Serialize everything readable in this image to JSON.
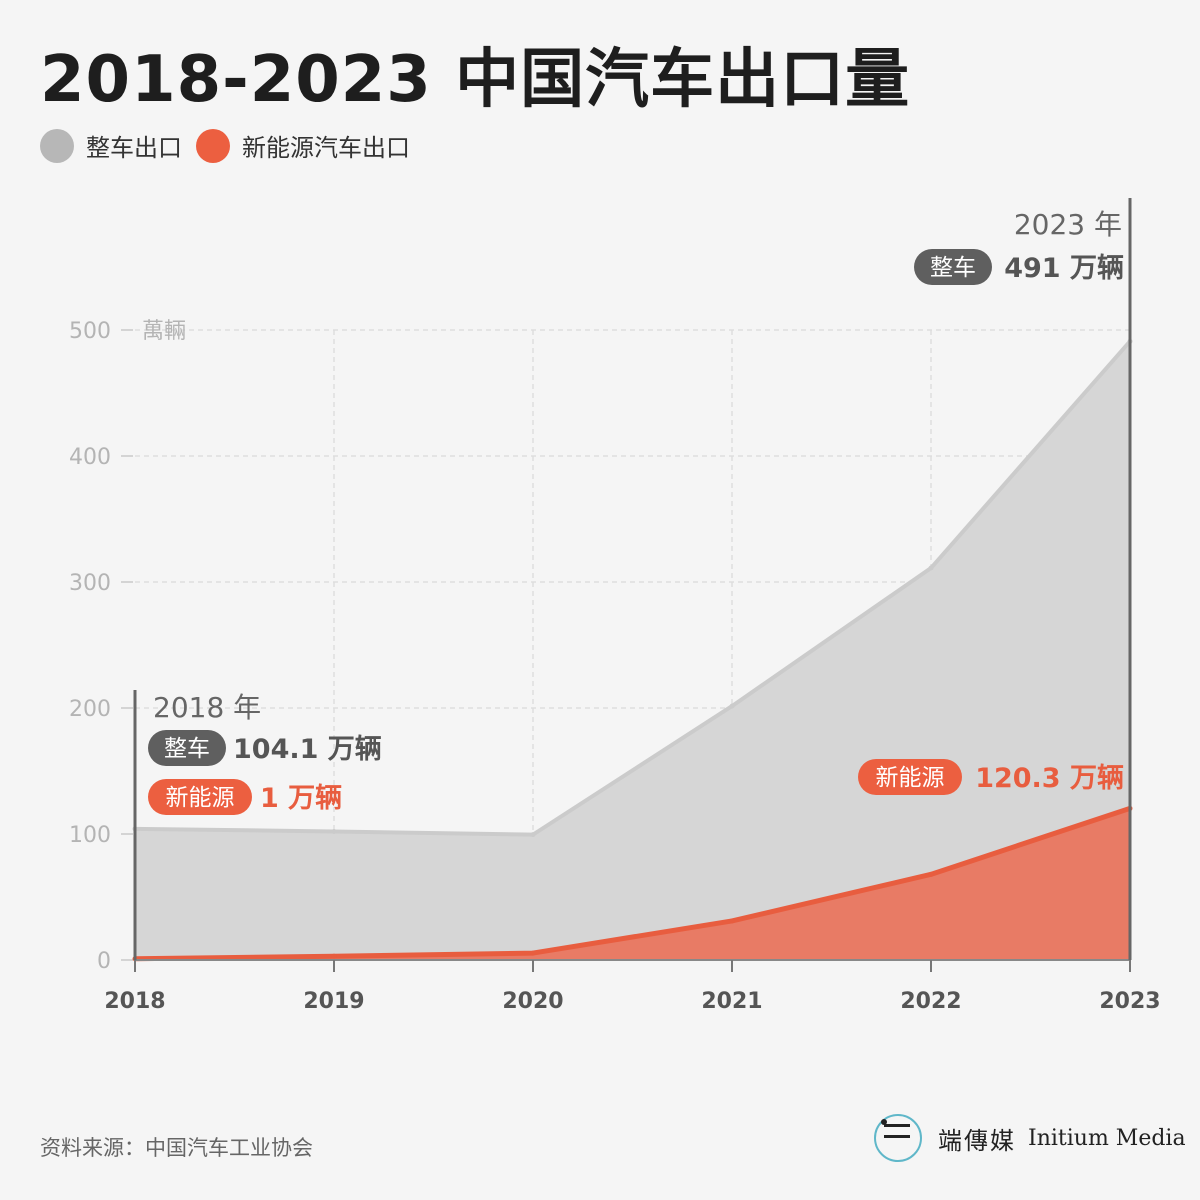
{
  "title": "2018-2023 中国汽车出口量",
  "legend": [
    {
      "label": "整车出口",
      "color": "#b7b7b7"
    },
    {
      "label": "新能源汽车出口",
      "color": "#ec5f40"
    }
  ],
  "chart_data": {
    "type": "area",
    "x": [
      "2018",
      "2019",
      "2020",
      "2021",
      "2022",
      "2023"
    ],
    "series": [
      {
        "name": "整车出口",
        "values": [
          104.1,
          102,
          99.5,
          201.5,
          311.1,
          491
        ],
        "color": "#d6d6d6",
        "line_color": "#cbcbcb"
      },
      {
        "name": "新能源汽车出口",
        "values": [
          1,
          3,
          5.5,
          31,
          68,
          120.3
        ],
        "color": "#e87b65",
        "line_color": "#e85d3f"
      }
    ],
    "ylim": [
      0,
      500
    ],
    "yticks": [
      "0",
      "100",
      "200",
      "300",
      "400",
      "500"
    ],
    "unit": "萬輛",
    "grid": true,
    "annotations": {
      "start": {
        "year": "2018 年",
        "total_label": "整车",
        "total_value": "104.1 万辆",
        "nev_label": "新能源",
        "nev_value": "1 万辆"
      },
      "end": {
        "year": "2023 年",
        "total_label": "整车",
        "total_value": "491 万辆",
        "nev_label": "新能源",
        "nev_value": "120.3 万辆"
      }
    }
  },
  "source": "资料来源：中国汽车工业协会",
  "brand": {
    "cn": "端傳媒",
    "en": "Initium Media"
  }
}
